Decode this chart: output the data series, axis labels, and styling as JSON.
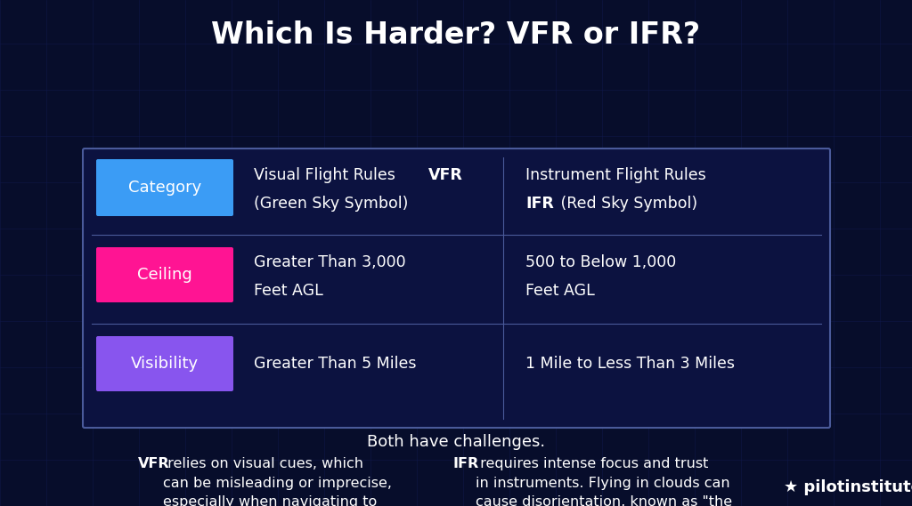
{
  "title": "Which Is Harder? VFR or IFR?",
  "bg_color": "#070d2b",
  "grid_color": "#121a50",
  "title_color": "#ffffff",
  "title_fontsize": 24,
  "table_border_color": "#4a5a9a",
  "table_bg_color": "#0c1240",
  "row_labels": [
    "Category",
    "Ceiling",
    "Visibility"
  ],
  "row_label_colors": [
    "#3b9cf5",
    "#ff1493",
    "#8855ee"
  ],
  "row_label_text_color": "#ffffff",
  "cell_text_color": "#ffffff",
  "both_line": "Both have challenges.",
  "both_line_color": "#ffffff",
  "vfr_desc_bold": "VFR",
  "vfr_desc": " relies on visual cues, which\ncan be misleading or imprecise,\nespecially when navigating to\nsmaller landmarks.",
  "ifr_desc_bold": "IFR",
  "ifr_desc": " requires intense focus and trust\nin instruments. Flying in clouds can\ncause disorientation, known as \"the\nleans,\" and errors in instrument\nscanning can be dangerous.",
  "logo_text": "pilotinstitute",
  "logo_color": "#ffffff",
  "desc_text_color": "#ffffff",
  "desc_fontsize": 11.5,
  "label_fontsize": 13,
  "cell_fontsize": 12.5
}
